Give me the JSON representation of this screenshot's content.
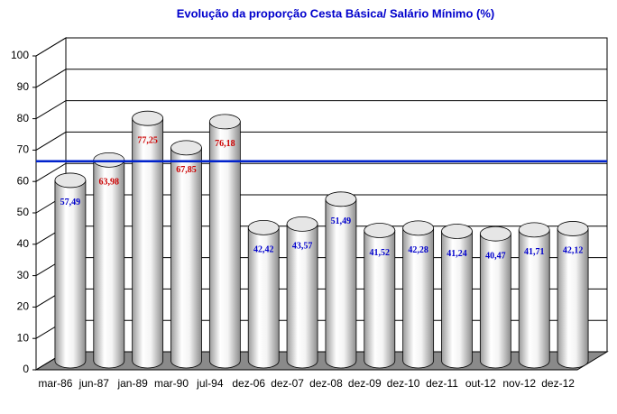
{
  "chart_data": {
    "type": "cylinder",
    "title": "Evolução da proporção Cesta Básica/ Salário Mínimo (%)",
    "categories": [
      "mar-86",
      "jun-87",
      "jan-89",
      "mar-90",
      "jul-94",
      "dez-06",
      "dez-07",
      "dez-08",
      "dez-09",
      "dez-10",
      "dez-11",
      "out-12",
      "nov-12",
      "dez-12"
    ],
    "values": [
      57.49,
      63.98,
      77.25,
      67.85,
      76.18,
      42.42,
      43.57,
      51.49,
      41.52,
      42.28,
      41.24,
      40.47,
      41.71,
      42.12
    ],
    "value_labels": [
      "57,49",
      "63,98",
      "77,25",
      "67,85",
      "76,18",
      "42,42",
      "43,57",
      "51,49",
      "41,52",
      "42,28",
      "41,24",
      "40,47",
      "41,71",
      "42,12"
    ],
    "value_label_colors": [
      "#0000cc",
      "#cc0000",
      "#cc0000",
      "#cc0000",
      "#cc0000",
      "#0000cc",
      "#0000cc",
      "#0000cc",
      "#0000cc",
      "#0000cc",
      "#0000cc",
      "#0000cc",
      "#0000cc",
      "#0000cc"
    ],
    "reference_line": {
      "value": 65,
      "color": "#0022cc"
    },
    "ylim": [
      0,
      100
    ],
    "yticks": [
      0,
      10,
      20,
      30,
      40,
      50,
      60,
      70,
      80,
      90,
      100
    ],
    "grid": true
  }
}
